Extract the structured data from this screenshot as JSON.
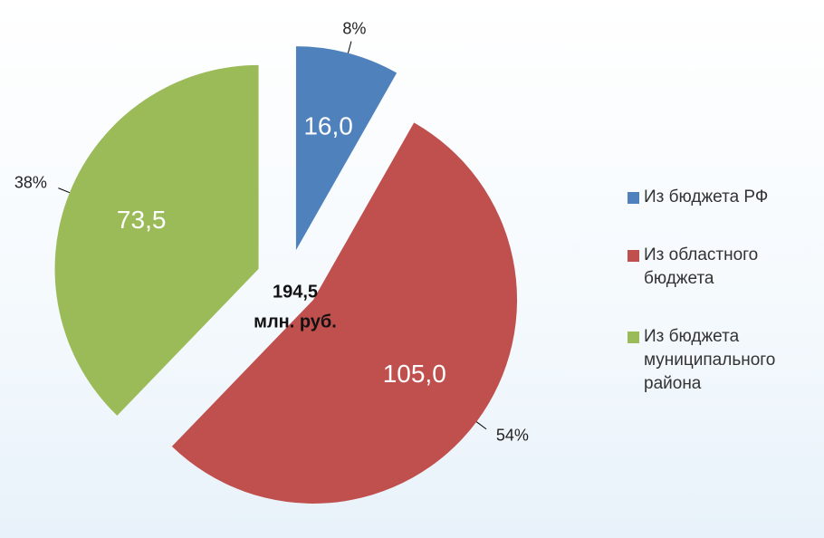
{
  "chart_data": {
    "type": "pie",
    "categories": [
      "Из бюджета РФ",
      "Из областного бюджета",
      "Из бюджета муниципального района"
    ],
    "values": [
      16.0,
      105.0,
      73.5
    ],
    "value_labels": [
      "16,0",
      "105,0",
      "73,5"
    ],
    "shares": [
      8,
      54,
      38
    ],
    "share_labels": [
      "8%",
      "54%",
      "38%"
    ],
    "colors": [
      "#4f81bd",
      "#c0504d",
      "#9bbb59"
    ],
    "center_label": [
      "194,5",
      "млн. руб."
    ],
    "legend": "right"
  }
}
